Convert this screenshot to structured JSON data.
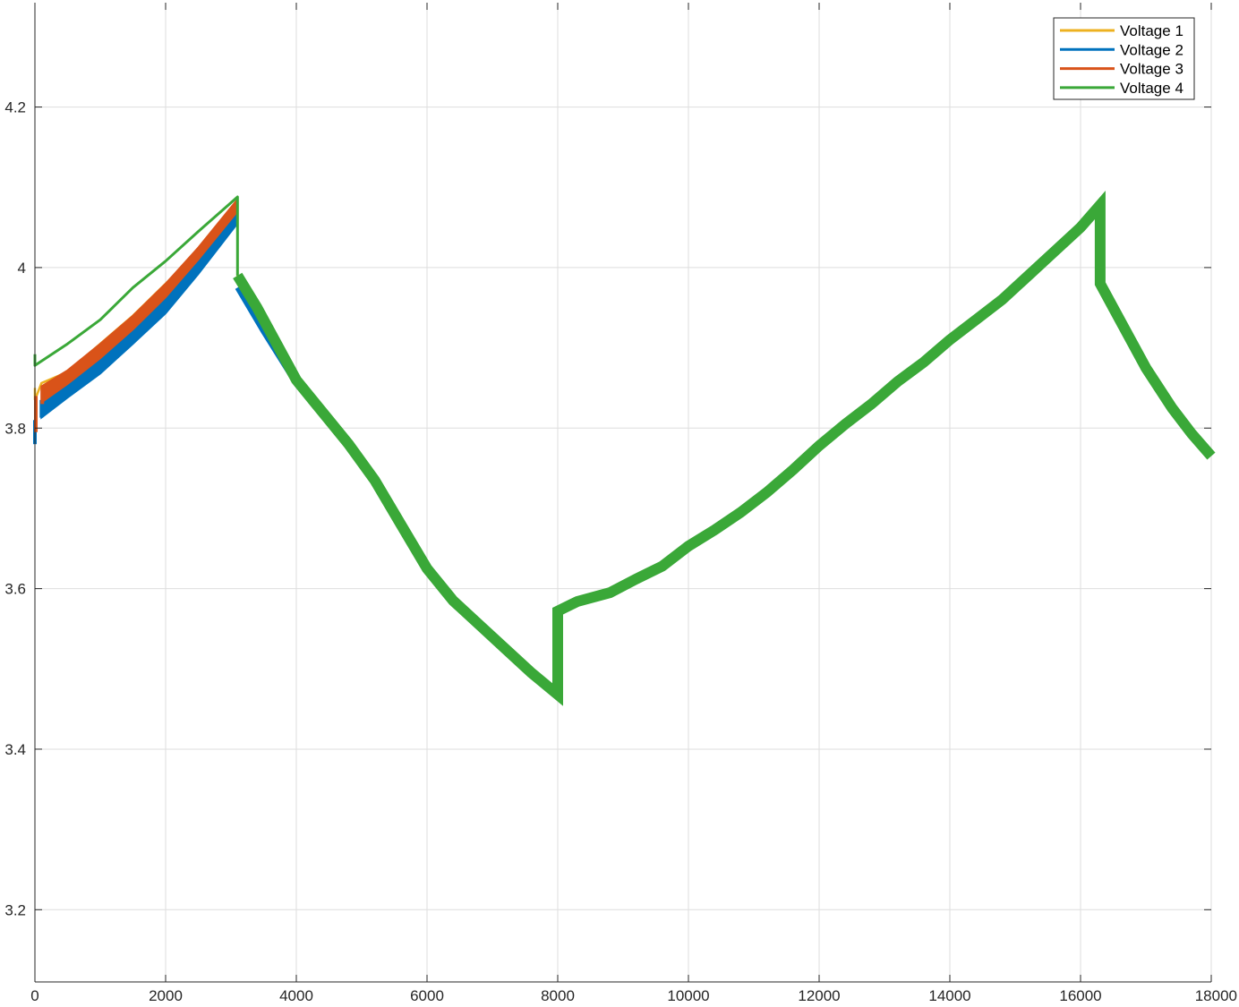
{
  "chart_data": {
    "type": "line",
    "title": "",
    "xlabel": "",
    "ylabel": "",
    "xlim": [
      0,
      18000
    ],
    "ylim": [
      3.11,
      4.33
    ],
    "xticks": [
      0,
      2000,
      4000,
      6000,
      8000,
      10000,
      12000,
      14000,
      16000,
      18000
    ],
    "xtick_labels": [
      "0",
      "2000",
      "4000",
      "6000",
      "8000",
      "10000",
      "12000",
      "14000",
      "16000",
      "18000"
    ],
    "yticks": [
      3.2,
      3.4,
      3.6,
      3.8,
      4.0,
      4.2
    ],
    "ytick_labels": [
      "3.2",
      "3.4",
      "3.6",
      "3.8",
      "4",
      "4.2"
    ],
    "grid": true,
    "legend_position": "top-right",
    "series": [
      {
        "name": "Voltage 1",
        "color": "#EDB120",
        "band": false,
        "points": [
          [
            0,
            3.85
          ],
          [
            0,
            3.835
          ],
          [
            100,
            3.856
          ],
          [
            500,
            3.87
          ],
          [
            1000,
            3.905
          ],
          [
            1500,
            3.94
          ],
          [
            2000,
            3.98
          ],
          [
            2500,
            4.02
          ],
          [
            3000,
            4.07
          ],
          [
            3100,
            4.085
          ],
          [
            3100,
            3.985
          ],
          [
            3500,
            3.93
          ],
          [
            4000,
            3.862
          ],
          [
            4300,
            3.83
          ]
        ]
      },
      {
        "name": "Voltage 2",
        "color": "#0072BD",
        "band": true,
        "upper": [
          [
            100,
            3.832
          ],
          [
            500,
            3.855
          ],
          [
            1000,
            3.887
          ],
          [
            1500,
            3.923
          ],
          [
            2000,
            3.963
          ],
          [
            2500,
            4.01
          ],
          [
            3100,
            4.07
          ]
        ],
        "lower": [
          [
            100,
            3.813
          ],
          [
            500,
            3.838
          ],
          [
            1000,
            3.868
          ],
          [
            1500,
            3.905
          ],
          [
            2000,
            3.943
          ],
          [
            2500,
            3.992
          ],
          [
            3100,
            4.055
          ]
        ],
        "spikes": [
          [
            0,
            3.78,
            3.81
          ],
          [
            100,
            3.813,
            3.835
          ]
        ],
        "after": [
          [
            3100,
            3.975
          ],
          [
            3500,
            3.92
          ],
          [
            4000,
            3.855
          ],
          [
            4300,
            3.825
          ]
        ]
      },
      {
        "name": "Voltage 3",
        "color": "#D95319",
        "band": true,
        "upper": [
          [
            100,
            3.852
          ],
          [
            500,
            3.872
          ],
          [
            1000,
            3.905
          ],
          [
            1500,
            3.94
          ],
          [
            2000,
            3.98
          ],
          [
            2500,
            4.025
          ],
          [
            3100,
            4.085
          ]
        ],
        "lower": [
          [
            100,
            3.832
          ],
          [
            500,
            3.855
          ],
          [
            1000,
            3.887
          ],
          [
            1500,
            3.923
          ],
          [
            2000,
            3.963
          ],
          [
            2500,
            4.01
          ],
          [
            3100,
            4.07
          ]
        ],
        "spikes": [
          [
            0,
            3.795,
            3.84
          ],
          [
            100,
            3.83,
            3.85
          ]
        ],
        "after": [
          [
            3100,
            3.988
          ],
          [
            3500,
            3.93
          ],
          [
            4000,
            3.862
          ],
          [
            4300,
            3.828
          ]
        ]
      },
      {
        "name": "Voltage 4",
        "color": "#3AA838",
        "band": true,
        "early": [
          [
            0,
            3.892
          ],
          [
            0,
            3.878
          ],
          [
            500,
            3.905
          ],
          [
            1000,
            3.935
          ],
          [
            1500,
            3.975
          ],
          [
            2000,
            4.008
          ],
          [
            2500,
            4.045
          ],
          [
            3100,
            4.088
          ],
          [
            3100,
            3.99
          ]
        ],
        "points": [
          [
            3100,
            3.99
          ],
          [
            3400,
            3.95
          ],
          [
            3700,
            3.905
          ],
          [
            4000,
            3.86
          ],
          [
            4300,
            3.83
          ],
          [
            4500,
            3.81
          ],
          [
            4800,
            3.78
          ],
          [
            5200,
            3.735
          ],
          [
            5600,
            3.68
          ],
          [
            6000,
            3.625
          ],
          [
            6400,
            3.585
          ],
          [
            6800,
            3.555
          ],
          [
            7200,
            3.525
          ],
          [
            7600,
            3.495
          ],
          [
            8000,
            3.468
          ],
          [
            8000,
            3.572
          ],
          [
            8300,
            3.584
          ],
          [
            8800,
            3.595
          ],
          [
            9200,
            3.612
          ],
          [
            9600,
            3.628
          ],
          [
            10000,
            3.653
          ],
          [
            10400,
            3.673
          ],
          [
            10800,
            3.695
          ],
          [
            11200,
            3.72
          ],
          [
            11600,
            3.748
          ],
          [
            12000,
            3.778
          ],
          [
            12400,
            3.805
          ],
          [
            12800,
            3.83
          ],
          [
            13200,
            3.858
          ],
          [
            13600,
            3.882
          ],
          [
            14000,
            3.91
          ],
          [
            14400,
            3.935
          ],
          [
            14800,
            3.96
          ],
          [
            15200,
            3.99
          ],
          [
            15600,
            4.02
          ],
          [
            16000,
            4.05
          ],
          [
            16300,
            4.078
          ],
          [
            16300,
            3.98
          ],
          [
            16600,
            3.935
          ],
          [
            17000,
            3.875
          ],
          [
            17400,
            3.825
          ],
          [
            17700,
            3.793
          ],
          [
            18000,
            3.765
          ]
        ],
        "band_width": 0.013
      }
    ]
  }
}
